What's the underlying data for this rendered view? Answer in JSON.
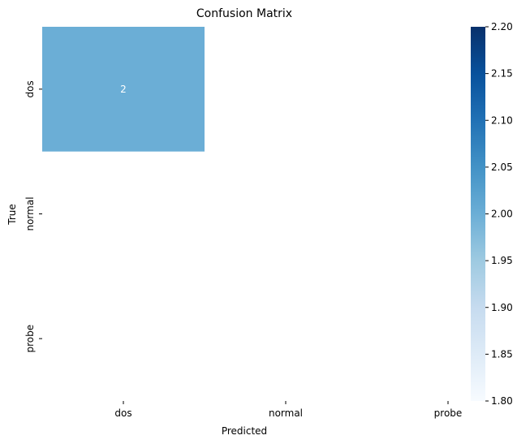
{
  "chart_data": {
    "type": "heatmap",
    "title": "Confusion Matrix",
    "xlabel": "Predicted",
    "ylabel": "True",
    "x_categories": [
      "dos",
      "normal",
      "probe"
    ],
    "y_categories": [
      "dos",
      "normal",
      "probe"
    ],
    "values": [
      [
        2,
        null,
        null
      ],
      [
        null,
        null,
        null
      ],
      [
        null,
        null,
        null
      ]
    ],
    "annotations": [
      [
        2,
        null,
        null
      ],
      [
        null,
        null,
        null
      ],
      [
        null,
        null,
        null
      ]
    ],
    "colormap": "Blues",
    "colorbar": {
      "range": [
        1.8,
        2.2
      ],
      "ticks": [
        1.8,
        1.85,
        1.9,
        1.95,
        2.0,
        2.05,
        2.1,
        2.15,
        2.2
      ],
      "tick_labels": [
        "1.80",
        "1.85",
        "1.90",
        "1.95",
        "2.00",
        "2.05",
        "2.10",
        "2.15",
        "2.20"
      ],
      "low_color": "#f7fbff",
      "high_color": "#08306b"
    },
    "colors": {
      "stops": [
        "#f7fbff",
        "#deebf7",
        "#c6dbef",
        "#9ecae1",
        "#6baed6",
        "#4292c6",
        "#2171b5",
        "#08519c",
        "#08306b"
      ]
    }
  }
}
